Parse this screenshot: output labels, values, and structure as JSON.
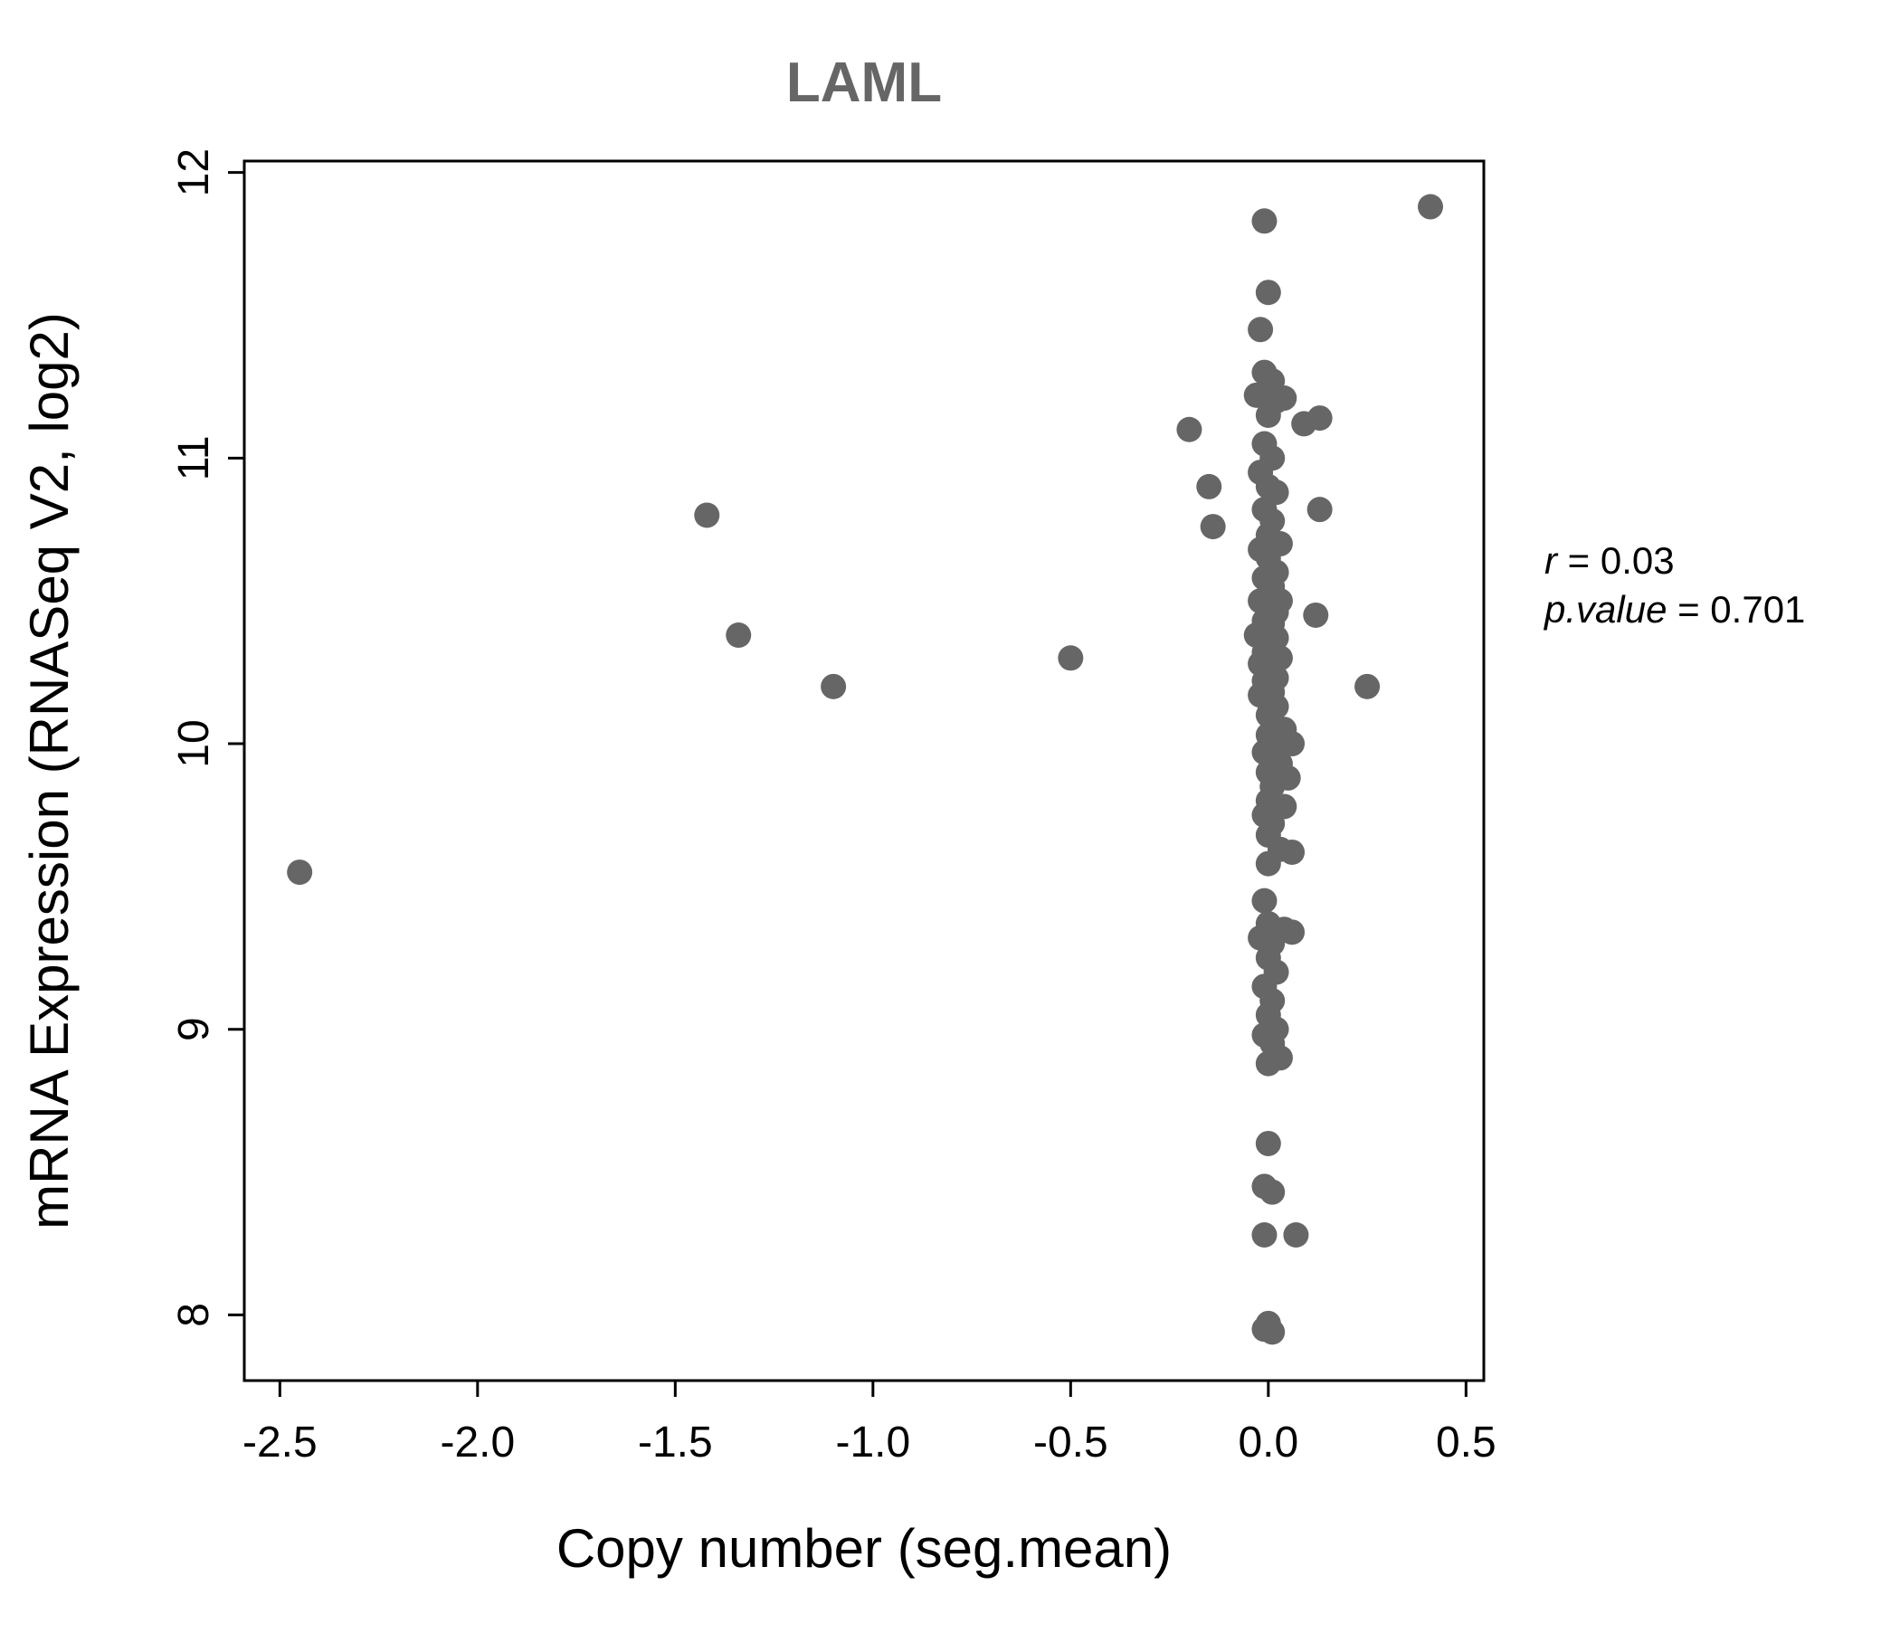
{
  "title": "LAML",
  "chart_data": {
    "type": "scatter",
    "title": "LAML",
    "xlabel": "Copy number (seg.mean)",
    "ylabel": "mRNA Expression (RNASeq V2, log2)",
    "xlim": [
      -2.59,
      0.545
    ],
    "ylim": [
      7.77,
      12.04
    ],
    "xticks": [
      -2.5,
      -2.0,
      -1.5,
      -1.0,
      -0.5,
      0.0,
      0.5
    ],
    "xtick_labels": [
      "-2.5",
      "-2.0",
      "-1.5",
      "-1.0",
      "-0.5",
      "0.0",
      "0.5"
    ],
    "yticks": [
      8,
      9,
      10,
      11,
      12
    ],
    "ytick_labels": [
      "8",
      "9",
      "10",
      "11",
      "12"
    ],
    "grid": false,
    "legend": "none",
    "point_color": "#666666",
    "title_color": "#666666",
    "annotations": [
      "r = 0.03",
      "p.value = 0.701"
    ],
    "points": [
      [
        -2.45,
        9.55
      ],
      [
        -1.42,
        10.8
      ],
      [
        -1.34,
        10.38
      ],
      [
        -1.1,
        10.2
      ],
      [
        -0.5,
        10.3
      ],
      [
        -0.2,
        11.1
      ],
      [
        -0.15,
        10.9
      ],
      [
        -0.14,
        10.76
      ],
      [
        0.41,
        11.88
      ],
      [
        0.25,
        10.2
      ],
      [
        0.13,
        10.82
      ],
      [
        0.12,
        10.45
      ],
      [
        0.13,
        11.14
      ],
      [
        0.09,
        11.12
      ],
      [
        0.07,
        8.28
      ],
      [
        -0.01,
        11.83
      ],
      [
        0.0,
        11.58
      ],
      [
        -0.02,
        11.45
      ],
      [
        -0.01,
        11.3
      ],
      [
        0.01,
        11.27
      ],
      [
        -0.03,
        11.22
      ],
      [
        0.02,
        11.2
      ],
      [
        0.04,
        11.21
      ],
      [
        0.0,
        11.15
      ],
      [
        -0.01,
        11.05
      ],
      [
        0.01,
        11.0
      ],
      [
        -0.02,
        10.95
      ],
      [
        0.0,
        10.9
      ],
      [
        0.02,
        10.88
      ],
      [
        -0.01,
        10.82
      ],
      [
        0.01,
        10.78
      ],
      [
        0.0,
        10.73
      ],
      [
        0.03,
        10.7
      ],
      [
        -0.02,
        10.68
      ],
      [
        0.0,
        10.65
      ],
      [
        0.02,
        10.6
      ],
      [
        -0.01,
        10.58
      ],
      [
        0.01,
        10.55
      ],
      [
        0.0,
        10.52
      ],
      [
        0.03,
        10.5
      ],
      [
        -0.02,
        10.5
      ],
      [
        0.0,
        10.48
      ],
      [
        0.02,
        10.46
      ],
      [
        -0.01,
        10.43
      ],
      [
        0.01,
        10.42
      ],
      [
        0.0,
        10.4
      ],
      [
        -0.03,
        10.38
      ],
      [
        0.02,
        10.37
      ],
      [
        0.0,
        10.35
      ],
      [
        0.01,
        10.33
      ],
      [
        -0.01,
        10.32
      ],
      [
        0.03,
        10.3
      ],
      [
        0.0,
        10.3
      ],
      [
        -0.02,
        10.28
      ],
      [
        0.01,
        10.27
      ],
      [
        0.0,
        10.25
      ],
      [
        0.02,
        10.23
      ],
      [
        -0.01,
        10.22
      ],
      [
        0.0,
        10.2
      ],
      [
        0.01,
        10.18
      ],
      [
        -0.02,
        10.17
      ],
      [
        0.0,
        10.15
      ],
      [
        0.02,
        10.13
      ],
      [
        0.0,
        10.1
      ],
      [
        0.01,
        10.08
      ],
      [
        0.04,
        10.05
      ],
      [
        0.0,
        10.03
      ],
      [
        0.06,
        10.0
      ],
      [
        0.01,
        9.98
      ],
      [
        -0.01,
        9.97
      ],
      [
        0.03,
        9.93
      ],
      [
        0.0,
        9.9
      ],
      [
        0.05,
        9.88
      ],
      [
        0.01,
        9.85
      ],
      [
        0.0,
        9.8
      ],
      [
        0.04,
        9.78
      ],
      [
        -0.01,
        9.75
      ],
      [
        0.01,
        9.72
      ],
      [
        0.0,
        9.68
      ],
      [
        0.03,
        9.63
      ],
      [
        0.06,
        9.62
      ],
      [
        0.0,
        9.58
      ],
      [
        -0.01,
        9.45
      ],
      [
        0.0,
        9.37
      ],
      [
        0.04,
        9.35
      ],
      [
        -0.02,
        9.32
      ],
      [
        0.01,
        9.3
      ],
      [
        0.06,
        9.34
      ],
      [
        0.0,
        9.25
      ],
      [
        0.02,
        9.2
      ],
      [
        -0.01,
        9.15
      ],
      [
        0.01,
        9.1
      ],
      [
        0.0,
        9.05
      ],
      [
        0.02,
        9.0
      ],
      [
        -0.01,
        8.98
      ],
      [
        0.01,
        8.95
      ],
      [
        0.03,
        8.9
      ],
      [
        0.0,
        8.88
      ],
      [
        0.0,
        8.6
      ],
      [
        -0.01,
        8.45
      ],
      [
        0.01,
        8.43
      ],
      [
        -0.01,
        8.28
      ],
      [
        -0.01,
        7.95
      ],
      [
        0.01,
        7.94
      ],
      [
        0.0,
        7.97
      ]
    ]
  }
}
